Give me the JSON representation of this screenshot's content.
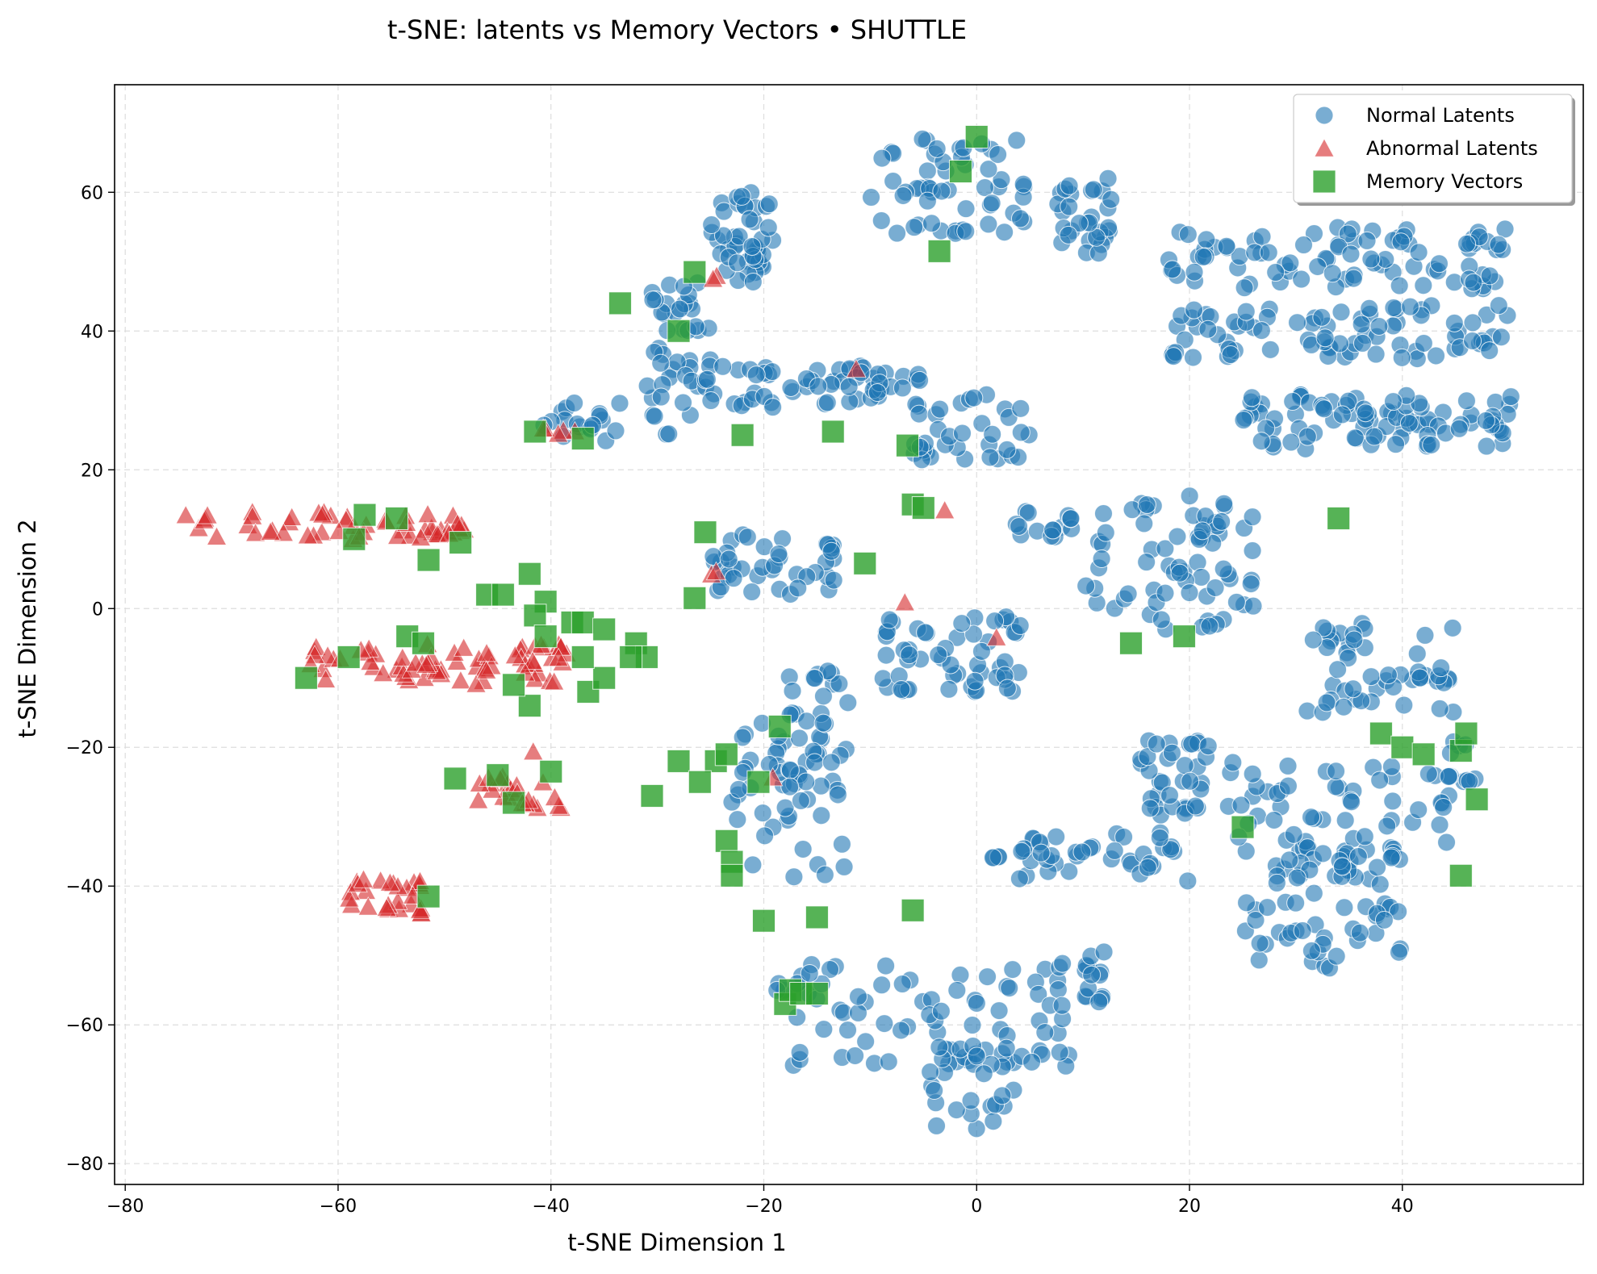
{
  "chart_data": {
    "type": "scatter",
    "title": "t-SNE: latents vs Memory Vectors • SHUTTLE",
    "xlabel": "t-SNE Dimension 1",
    "ylabel": "t-SNE Dimension 2",
    "xlim": [
      -81,
      57
    ],
    "ylim": [
      -83,
      75.5
    ],
    "x_ticks": [
      -80,
      -60,
      -40,
      -20,
      0,
      20,
      40
    ],
    "y_ticks": [
      -80,
      -60,
      -40,
      -20,
      0,
      20,
      40,
      60
    ],
    "x_tick_labels": [
      "−80",
      "−60",
      "−40",
      "−20",
      "0",
      "20",
      "40"
    ],
    "y_tick_labels": [
      "−80",
      "−60",
      "−40",
      "−20",
      "0",
      "20",
      "40",
      "60"
    ],
    "grid": true,
    "legend_position": "top-right",
    "series": [
      {
        "name": "Normal Latents",
        "marker": "circle",
        "color": "#1f77b4",
        "clusters": [
          {
            "x": [
              -25,
              -19
            ],
            "y": [
              47,
              60
            ],
            "n": 45
          },
          {
            "x": [
              -31,
              -25
            ],
            "y": [
              25,
              47
            ],
            "n": 45
          },
          {
            "x": [
              -41,
              -33
            ],
            "y": [
              24,
              30
            ],
            "n": 18
          },
          {
            "x": [
              -26,
              -5
            ],
            "y": [
              29,
              35
            ],
            "n": 60
          },
          {
            "x": [
              -6,
              5
            ],
            "y": [
              21,
              31
            ],
            "n": 35
          },
          {
            "x": [
              -10,
              5
            ],
            "y": [
              54,
              68
            ],
            "n": 55
          },
          {
            "x": [
              7,
              13
            ],
            "y": [
              51,
              62
            ],
            "n": 30
          },
          {
            "x": [
              18,
              50
            ],
            "y": [
              46,
              55
            ],
            "n": 90
          },
          {
            "x": [
              18,
              50
            ],
            "y": [
              36,
              44
            ],
            "n": 85
          },
          {
            "x": [
              25,
              51
            ],
            "y": [
              23,
              31
            ],
            "n": 90
          },
          {
            "x": [
              -25,
              -13
            ],
            "y": [
              2,
              11
            ],
            "n": 40
          },
          {
            "x": [
              -9,
              5
            ],
            "y": [
              -12,
              -1
            ],
            "n": 55
          },
          {
            "x": [
              3,
              9
            ],
            "y": [
              10,
              14
            ],
            "n": 15
          },
          {
            "x": [
              10,
              26
            ],
            "y": [
              -3,
              17
            ],
            "n": 70
          },
          {
            "x": [
              31,
              45
            ],
            "y": [
              -15,
              -1
            ],
            "n": 50
          },
          {
            "x": [
              44,
              47
            ],
            "y": [
              -25,
              -19
            ],
            "n": 10
          },
          {
            "x": [
              15,
              22
            ],
            "y": [
              -30,
              -19
            ],
            "n": 35
          },
          {
            "x": [
              23,
              45
            ],
            "y": [
              -35,
              -22
            ],
            "n": 60
          },
          {
            "x": [
              28,
              40
            ],
            "y": [
              -40,
              -35
            ],
            "n": 30
          },
          {
            "x": [
              25,
              40
            ],
            "y": [
              -52,
              -41
            ],
            "n": 40
          },
          {
            "x": [
              4,
              20
            ],
            "y": [
              -40,
              -32
            ],
            "n": 40
          },
          {
            "x": [
              1,
              3
            ],
            "y": [
              -36,
              -35
            ],
            "n": 4
          },
          {
            "x": [
              10,
              12
            ],
            "y": [
              -57,
              -48
            ],
            "n": 14
          },
          {
            "x": [
              -23,
              -12
            ],
            "y": [
              -39,
              -15
            ],
            "n": 45
          },
          {
            "x": [
              -18,
              -12
            ],
            "y": [
              -30,
              -9
            ],
            "n": 30
          },
          {
            "x": [
              -19,
              9
            ],
            "y": [
              -66,
              -51
            ],
            "n": 80
          },
          {
            "x": [
              -5,
              4
            ],
            "y": [
              -76,
              -63
            ],
            "n": 30
          }
        ]
      },
      {
        "name": "Abnormal Latents",
        "marker": "triangle",
        "color": "#d62728",
        "clusters": [
          {
            "x": [
              -75,
              -48
            ],
            "y": [
              10,
              14
            ],
            "n": 55
          },
          {
            "x": [
              -63,
              -38
            ],
            "y": [
              -11,
              -5
            ],
            "n": 70
          },
          {
            "x": [
              -47,
              -39
            ],
            "y": [
              -29,
              -24
            ],
            "n": 22
          },
          {
            "x": [
              -59,
              -52
            ],
            "y": [
              -44,
              -39
            ],
            "n": 28
          },
          {
            "x": [
              -42,
              -37
            ],
            "y": [
              24,
              26
            ],
            "n": 5
          },
          {
            "x": [
              -25,
              -24
            ],
            "y": [
              46,
              48
            ],
            "n": 2
          },
          {
            "x": [
              -12,
              -11
            ],
            "y": [
              34,
              35
            ],
            "n": 1
          },
          {
            "x": [
              -25,
              -24
            ],
            "y": [
              4,
              6
            ],
            "n": 2
          },
          {
            "x": [
              -7,
              -6
            ],
            "y": [
              0,
              1
            ],
            "n": 1
          },
          {
            "x": [
              -4,
              -3
            ],
            "y": [
              14,
              15
            ],
            "n": 1
          },
          {
            "x": [
              1,
              2
            ],
            "y": [
              -5,
              -4
            ],
            "n": 1
          },
          {
            "x": [
              -42,
              -41
            ],
            "y": [
              -21,
              -20
            ],
            "n": 1
          },
          {
            "x": [
              -20,
              -19
            ],
            "y": [
              -25,
              -24
            ],
            "n": 1
          }
        ]
      },
      {
        "name": "Memory Vectors",
        "marker": "square",
        "color": "#2ca02c",
        "x": [
          0,
          -1.5,
          -3.5,
          -26.5,
          -33.5,
          -28,
          -41.5,
          -37,
          -22,
          -13.5,
          -6.5,
          -6,
          -5,
          34,
          -25.5,
          -10.5,
          -26.5,
          14.5,
          19.5,
          -57.5,
          -54.5,
          -58.5,
          -51.5,
          -48.5,
          -46,
          -44.5,
          -42,
          -40.5,
          -41.5,
          -38,
          -37,
          -35,
          -36.5,
          -32,
          -31,
          -32.5,
          -35,
          -37,
          -40.5,
          -42,
          -43.5,
          -53.5,
          -52,
          -59,
          -63,
          -49,
          -45,
          -43.5,
          -40,
          -51.5,
          -28,
          -30.5,
          -24.5,
          -23.5,
          -26,
          -20.5,
          -18.5,
          -23.5,
          -23,
          -23,
          -20,
          -15,
          -6,
          -18,
          -17.5,
          -16.5,
          -15,
          38,
          40,
          42,
          45.5,
          46,
          47,
          25,
          45.5
        ],
        "y": [
          68,
          63,
          51.5,
          48.5,
          44,
          40,
          25.5,
          24.5,
          25,
          25.5,
          23.5,
          15,
          14.5,
          13,
          11,
          6.5,
          1.5,
          -5,
          -4,
          13.5,
          13,
          10,
          7,
          9.5,
          2,
          2,
          5,
          1,
          -1,
          -2,
          -2,
          -3,
          -12,
          -5,
          -7,
          -7,
          -10,
          -7,
          -4,
          -14,
          -11,
          -4,
          -5,
          -7,
          -10,
          -24.5,
          -24,
          -28,
          -23.5,
          -41.5,
          -22,
          -27,
          -22,
          -21,
          -25,
          -25,
          -17,
          -33.5,
          -36.5,
          -38.5,
          -45,
          -44.5,
          -43.5,
          -57,
          -55,
          -55.5,
          -55.5,
          -18,
          -20,
          -21,
          -20.5,
          -18,
          -27.5,
          -31.5,
          -38.5
        ]
      }
    ]
  }
}
